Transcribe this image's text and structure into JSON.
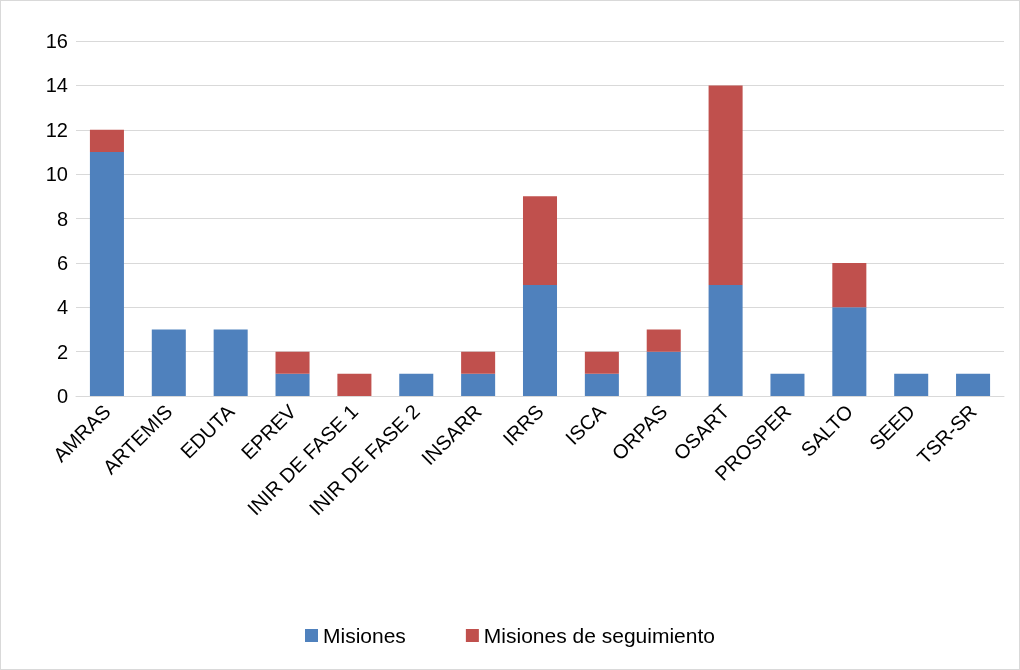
{
  "chart_data": {
    "type": "bar",
    "stacked": true,
    "categories": [
      "AMRAS",
      "ARTEMIS",
      "EDUTA",
      "EPREV",
      "INIR DE FASE 1",
      "INIR DE FASE 2",
      "INSARR",
      "IRRS",
      "ISCA",
      "ORPAS",
      "OSART",
      "PROSPER",
      "SALTO",
      "SEED",
      "TSR-SR"
    ],
    "series": [
      {
        "name": "Misiones",
        "color": "#4f81bd",
        "values": [
          11,
          3,
          3,
          1,
          0,
          1,
          1,
          5,
          1,
          2,
          5,
          1,
          4,
          1,
          1
        ]
      },
      {
        "name": "Misiones de seguimiento",
        "color": "#c0504d",
        "values": [
          1,
          0,
          0,
          1,
          1,
          0,
          1,
          4,
          1,
          1,
          9,
          0,
          2,
          0,
          0
        ]
      }
    ],
    "ylim": [
      0,
      16
    ],
    "yticks": [
      0,
      2,
      4,
      6,
      8,
      10,
      12,
      14,
      16
    ],
    "grid": "y",
    "legend": "bottom"
  }
}
